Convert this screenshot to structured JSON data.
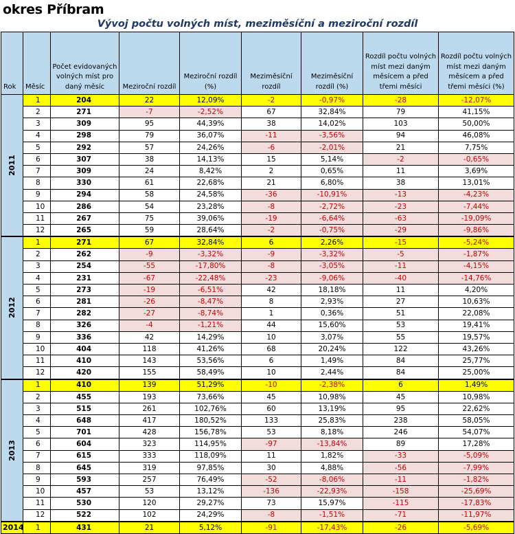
{
  "title": "okres Příbram",
  "subtitle": "Vývoj počtu volných míst, meziměsíční a meziroční rozdíl",
  "headers": {
    "rok": "Rok",
    "mesic": "Měsíc",
    "pocet": "Počet evidovaných volných míst pro daný měsíc",
    "mezirocni": "Meziroční rozdíl",
    "mezirocni_pct": "Meziroční rozdíl (%)",
    "mezimesicni": "Meziměsíční rozdíl",
    "mezimesicni_pct": "Meziměsíční rozdíl (%)",
    "rozdil3": "Rozdíl počtu volných míst mezi daným měsícem a před třemi měsíci",
    "rozdil3_pct": "Rozdíl počtu volných míst mezi daným měsícem a před třemi měsíci (%)"
  },
  "highlight_color": "#ffff00",
  "negative_color": "#cc0000",
  "years": [
    {
      "year": "2011",
      "rows": [
        [
          "1",
          "204",
          "22",
          "12,09%",
          "-2",
          "-0,97%",
          "-28",
          "-12,07%"
        ],
        [
          "2",
          "271",
          "-7",
          "-2,52%",
          "67",
          "32,84%",
          "79",
          "41,15%"
        ],
        [
          "3",
          "309",
          "95",
          "44,39%",
          "38",
          "14,02%",
          "103",
          "50,00%"
        ],
        [
          "4",
          "298",
          "79",
          "36,07%",
          "-11",
          "-3,56%",
          "94",
          "46,08%"
        ],
        [
          "5",
          "292",
          "57",
          "24,26%",
          "-6",
          "-2,01%",
          "21",
          "7,75%"
        ],
        [
          "6",
          "307",
          "38",
          "14,13%",
          "15",
          "5,14%",
          "-2",
          "-0,65%"
        ],
        [
          "7",
          "309",
          "24",
          "8,42%",
          "2",
          "0,65%",
          "11",
          "3,69%"
        ],
        [
          "8",
          "330",
          "61",
          "22,68%",
          "21",
          "6,80%",
          "38",
          "13,01%"
        ],
        [
          "9",
          "294",
          "58",
          "24,58%",
          "-36",
          "-10,91%",
          "-13",
          "-4,23%"
        ],
        [
          "10",
          "286",
          "54",
          "23,28%",
          "-8",
          "-2,72%",
          "-23",
          "-7,44%"
        ],
        [
          "11",
          "267",
          "75",
          "39,06%",
          "-19",
          "-6,64%",
          "-63",
          "-19,09%"
        ],
        [
          "12",
          "265",
          "59",
          "28,64%",
          "-2",
          "-0,75%",
          "-29",
          "-9,86%"
        ]
      ]
    },
    {
      "year": "2012",
      "rows": [
        [
          "1",
          "271",
          "67",
          "32,84%",
          "6",
          "2,26%",
          "-15",
          "-5,24%"
        ],
        [
          "2",
          "262",
          "-9",
          "-3,32%",
          "-9",
          "-3,32%",
          "-5",
          "-1,87%"
        ],
        [
          "3",
          "254",
          "-55",
          "-17,80%",
          "-8",
          "-3,05%",
          "-11",
          "-4,15%"
        ],
        [
          "4",
          "231",
          "-67",
          "-22,48%",
          "-23",
          "-9,06%",
          "-40",
          "-14,76%"
        ],
        [
          "5",
          "273",
          "-19",
          "-6,51%",
          "42",
          "18,18%",
          "11",
          "4,20%"
        ],
        [
          "6",
          "281",
          "-26",
          "-8,47%",
          "8",
          "2,93%",
          "27",
          "10,63%"
        ],
        [
          "7",
          "282",
          "-27",
          "-8,74%",
          "1",
          "0,36%",
          "51",
          "22,08%"
        ],
        [
          "8",
          "326",
          "-4",
          "-1,21%",
          "44",
          "15,60%",
          "53",
          "19,41%"
        ],
        [
          "9",
          "336",
          "42",
          "14,29%",
          "10",
          "3,07%",
          "55",
          "19,57%"
        ],
        [
          "10",
          "404",
          "118",
          "41,26%",
          "68",
          "20,24%",
          "122",
          "43,26%"
        ],
        [
          "11",
          "410",
          "143",
          "53,56%",
          "6",
          "1,49%",
          "84",
          "25,77%"
        ],
        [
          "12",
          "420",
          "155",
          "58,49%",
          "10",
          "2,44%",
          "84",
          "25,00%"
        ]
      ]
    },
    {
      "year": "2013",
      "rows": [
        [
          "1",
          "410",
          "139",
          "51,29%",
          "-10",
          "-2,38%",
          "6",
          "1,49%"
        ],
        [
          "2",
          "455",
          "193",
          "73,66%",
          "45",
          "10,98%",
          "45",
          "10,98%"
        ],
        [
          "3",
          "515",
          "261",
          "102,76%",
          "60",
          "13,19%",
          "95",
          "22,62%"
        ],
        [
          "4",
          "648",
          "417",
          "180,52%",
          "133",
          "25,83%",
          "238",
          "58,05%"
        ],
        [
          "5",
          "701",
          "428",
          "156,78%",
          "53",
          "8,18%",
          "246",
          "54,07%"
        ],
        [
          "6",
          "604",
          "323",
          "114,95%",
          "-97",
          "-13,84%",
          "89",
          "17,28%"
        ],
        [
          "7",
          "615",
          "333",
          "118,09%",
          "11",
          "1,82%",
          "-33",
          "-5,09%"
        ],
        [
          "8",
          "645",
          "319",
          "97,85%",
          "30",
          "4,88%",
          "-56",
          "-7,99%"
        ],
        [
          "9",
          "593",
          "257",
          "76,49%",
          "-52",
          "-8,06%",
          "-11",
          "-1,82%"
        ],
        [
          "10",
          "457",
          "53",
          "13,12%",
          "-136",
          "-22,93%",
          "-158",
          "-25,69%"
        ],
        [
          "11",
          "530",
          "120",
          "29,27%",
          "73",
          "15,97%",
          "-115",
          "-17,83%"
        ],
        [
          "12",
          "522",
          "102",
          "24,29%",
          "-8",
          "-1,51%",
          "-71",
          "-11,97%"
        ]
      ]
    },
    {
      "year": "2014",
      "rows": [
        [
          "1",
          "431",
          "21",
          "5,12%",
          "-91",
          "-17,43%",
          "-26",
          "-5,69%"
        ]
      ]
    }
  ]
}
